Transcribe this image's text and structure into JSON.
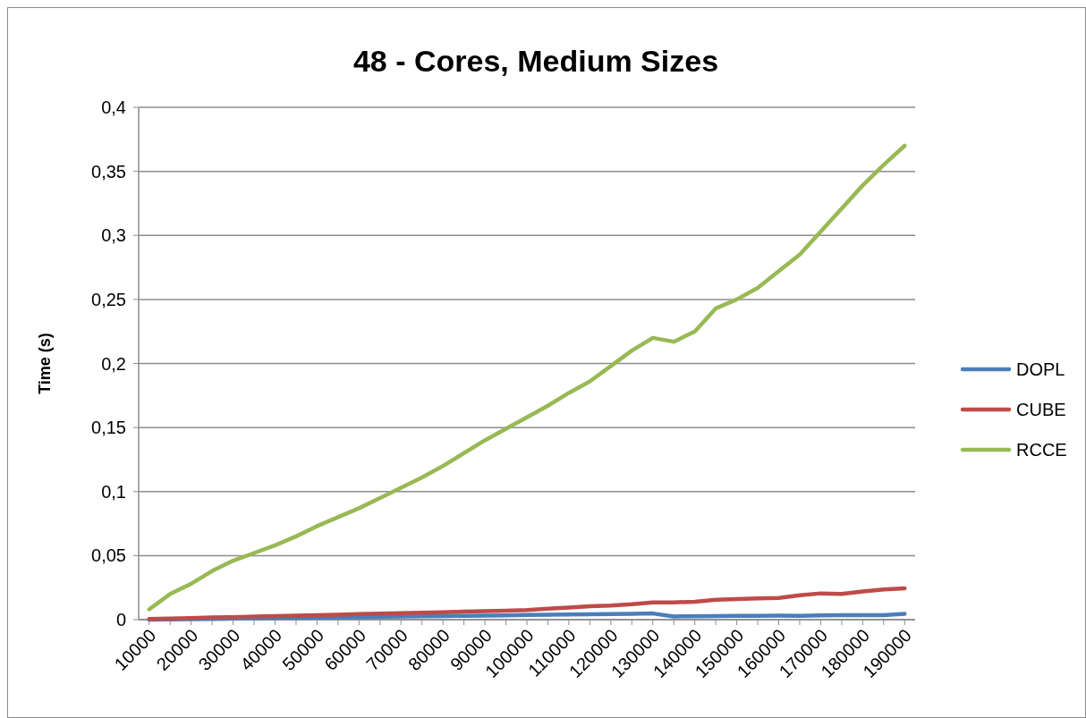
{
  "chart_data": {
    "type": "line",
    "title": "48 - Cores, Medium Sizes",
    "ylabel": "Time (s)",
    "categories": [
      "10000",
      null,
      "20000",
      null,
      "30000",
      null,
      "40000",
      null,
      "50000",
      null,
      "60000",
      null,
      "70000",
      null,
      "80000",
      null,
      "90000",
      null,
      "100000",
      null,
      "110000",
      null,
      "120000",
      null,
      "130000",
      null,
      "140000",
      null,
      "150000",
      null,
      "160000",
      null,
      "170000",
      null,
      "180000",
      null,
      "190000"
    ],
    "series": [
      {
        "name": "DOPL",
        "color": "#4a7ebb",
        "values": [
          0,
          0.0002,
          0.0004,
          0.0006,
          0.0008,
          0.001,
          0.0012,
          0.0014,
          0.0016,
          0.0018,
          0.002,
          0.0022,
          0.0024,
          0.0026,
          0.0028,
          0.003,
          0.0032,
          0.0034,
          0.0036,
          0.0038,
          0.004,
          0.0042,
          0.0044,
          0.0046,
          0.0048,
          0.0025,
          0.0027,
          0.0028,
          0.003,
          0.003,
          0.0031,
          0.003,
          0.0033,
          0.0035,
          0.0035,
          0.0035,
          0.0045
        ]
      },
      {
        "name": "CUBE",
        "color": "#be4b48",
        "values": [
          0.0005,
          0.0009,
          0.0013,
          0.0017,
          0.002,
          0.0024,
          0.0028,
          0.0032,
          0.0035,
          0.0039,
          0.0043,
          0.0047,
          0.005,
          0.0054,
          0.0058,
          0.0062,
          0.0066,
          0.007,
          0.0075,
          0.0085,
          0.0095,
          0.0105,
          0.011,
          0.012,
          0.0135,
          0.0135,
          0.014,
          0.0155,
          0.016,
          0.0165,
          0.017,
          0.019,
          0.0205,
          0.02,
          0.022,
          0.0235,
          0.0245
        ]
      },
      {
        "name": "RCCE",
        "color": "#98b954",
        "values": [
          0.008,
          0.02,
          0.028,
          0.038,
          0.046,
          0.052,
          0.058,
          0.065,
          0.073,
          0.08,
          0.087,
          0.095,
          0.103,
          0.111,
          0.12,
          0.13,
          0.14,
          0.149,
          0.158,
          0.167,
          0.177,
          0.186,
          0.198,
          0.21,
          0.22,
          0.217,
          0.225,
          0.243,
          0.25,
          0.259,
          0.272,
          0.285,
          0.303,
          0.321,
          0.339,
          0.355,
          0.37
        ]
      }
    ],
    "ylim": [
      0,
      0.4
    ],
    "yticks": [
      0,
      {
        "value": 0.05,
        "label": "0,05"
      },
      {
        "value": 0.1,
        "label": "0,1"
      },
      {
        "value": 0.15,
        "label": "0,15"
      },
      {
        "value": 0.2,
        "label": "0,2"
      },
      {
        "value": 0.25,
        "label": "0,25"
      },
      {
        "value": 0.3,
        "label": "0,3"
      },
      {
        "value": 0.35,
        "label": "0,35"
      },
      {
        "value": 0.4,
        "label": "0,4"
      }
    ],
    "grid": "y",
    "legend": "right",
    "marker": "none",
    "line_style": "solid"
  }
}
